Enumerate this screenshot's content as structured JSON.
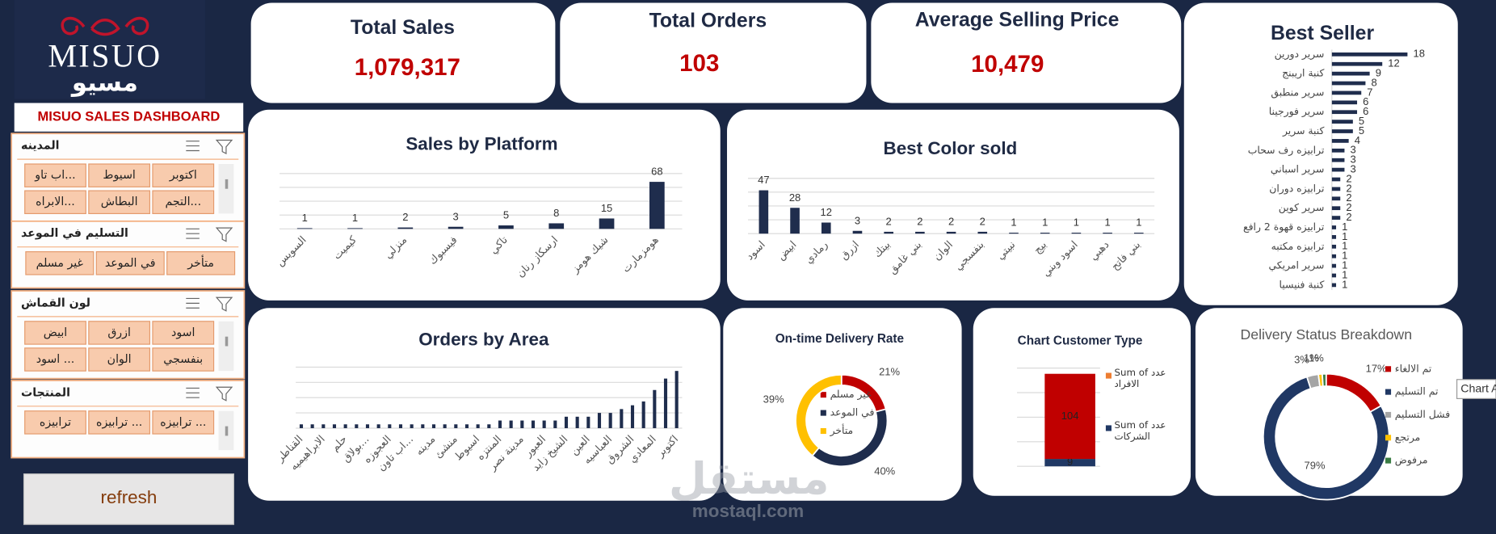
{
  "logo": {
    "latin": "MISUO",
    "arabic": "مسيو"
  },
  "dashboard_title": "MISUO SALES DASHBOARD",
  "slicers": [
    {
      "title": "المدينه",
      "items": [
        "اكتوبر",
        "اسيوط",
        "اب تاو...",
        "التجم...",
        "البطاش",
        "الابراه..."
      ]
    },
    {
      "title": "التسليم في الموعد",
      "items": [
        "متأخر",
        "في الموعد",
        "غير مسلم"
      ]
    },
    {
      "title": "لون القماش",
      "items": [
        "اسود",
        "ازرق",
        "ابيض",
        "بنفسجي",
        "الوان",
        "اسود ..."
      ]
    },
    {
      "title": "المنتجات",
      "items": [
        "ترابيزه ...",
        "ترابيزه ...",
        "ترابيزه"
      ]
    }
  ],
  "refresh": "refresh",
  "kpis": [
    {
      "title": "Total Sales",
      "value": "1,079,317"
    },
    {
      "title": "Total Orders",
      "value": "103"
    },
    {
      "title": "Average Selling Price",
      "value": "10,479"
    }
  ],
  "chart_data": [
    {
      "type": "bar",
      "title": "Sales by Platform",
      "categories": [
        "السويس",
        "كيميت",
        "منزلي",
        "فيسبوك",
        "تاكي",
        "ارسكاز رنان",
        "شيك هومز",
        "هومزمارت"
      ],
      "values": [
        1,
        1,
        2,
        3,
        5,
        8,
        15,
        68
      ],
      "color": "#1f2d4d",
      "ylim": [
        0,
        80
      ],
      "show_values": true
    },
    {
      "type": "bar",
      "title": "Best Color sold",
      "categories": [
        "اسود",
        "ابيض",
        "رمادي",
        "ازرق",
        "بيتك",
        "بني غامق",
        "الوان",
        "بنفسجي",
        "نبيتي",
        "بيج",
        "اسود وبني",
        "دهبي",
        "بني فاتح"
      ],
      "values": [
        47,
        28,
        12,
        3,
        2,
        2,
        2,
        2,
        1,
        1,
        1,
        1,
        1
      ],
      "color": "#1f2d4d",
      "ylim": [
        0,
        60
      ],
      "show_values": true
    },
    {
      "type": "barh",
      "title": "Best Seller",
      "categories": [
        "سرير دورين",
        null,
        "كنبة اريبنج",
        null,
        "سرير منطبق",
        null,
        "سرير فورجينا",
        null,
        "كنبة سرير",
        null,
        "ترابيزه رف سحاب",
        null,
        "سرير اسباني",
        null,
        "ترابيزه دوران",
        null,
        "سرير كوين",
        null,
        "ترابيزه قهوة 2 رافع",
        null,
        "ترابيزه مكتبه",
        null,
        "سرير امريكي",
        null,
        "كنبة فنيسيا"
      ],
      "values": [
        18,
        12,
        9,
        8,
        7,
        6,
        6,
        5,
        5,
        4,
        3,
        3,
        3,
        2,
        2,
        2,
        2,
        2,
        1,
        1,
        1,
        1,
        1,
        1,
        1
      ],
      "color": "#1f2d4d",
      "xlim": [
        0,
        20
      ],
      "show_values": true
    },
    {
      "type": "bar",
      "title": "Orders by Area",
      "categories": [
        "القناطر",
        null,
        "الابراهيميه",
        null,
        "حلم",
        null,
        "بولاق...",
        null,
        "العجوزه",
        null,
        "اب تاون...",
        null,
        "مدينه",
        null,
        "منشئ",
        null,
        "اسيوط",
        null,
        "المنتزه",
        null,
        "مدينة نصر",
        null,
        "العبور",
        null,
        "الشيخ زايد",
        null,
        "العين",
        null,
        "العباسيه",
        null,
        "الشروق",
        null,
        "المعادي",
        null,
        "اكتوبر"
      ],
      "values": [
        1,
        1,
        1,
        1,
        1,
        1,
        1,
        1,
        1,
        1,
        1,
        1,
        1,
        1,
        1,
        1,
        1,
        1,
        2,
        2,
        2,
        2,
        2,
        2,
        3,
        3,
        3,
        4,
        4,
        5,
        6,
        7,
        10,
        13,
        15
      ],
      "color": "#1f2d4d",
      "ylim": [
        0,
        16
      ],
      "show_values": false
    },
    {
      "type": "donut",
      "title": "On-time Delivery Rate",
      "categories": [
        "غير مسلم",
        "في الموعد",
        "متأخر"
      ],
      "values": [
        21,
        40,
        39
      ],
      "value_labels": [
        "21%",
        "40%",
        "39%"
      ],
      "colors": [
        "#c00000",
        "#1f2d4d",
        "#ffc000"
      ]
    },
    {
      "type": "stacked_bar",
      "title": "Chart Customer Type",
      "series": [
        {
          "name": "Sum of عدد الشركات",
          "color": "#203864",
          "values": [
            9
          ]
        },
        {
          "name": "Sum of عدد الافراد",
          "color": "#c00000",
          "legend_color": "#ed7d31",
          "values": [
            104
          ]
        }
      ],
      "ylim": [
        0,
        120
      ]
    },
    {
      "type": "donut",
      "title": "Delivery Status Breakdown",
      "categories": [
        "تم الالغاء",
        "تم التسليم",
        "فشل التسليم",
        "مرتجع",
        "مرفوض"
      ],
      "values": [
        17,
        79,
        3,
        1,
        1
      ],
      "value_labels": [
        "17%",
        "79%",
        "3%",
        "1%",
        "1%"
      ],
      "colors": [
        "#c00000",
        "#203864",
        "#a5a5a5",
        "#ffc000",
        "#3a7d44"
      ]
    }
  ],
  "watermark": {
    "arabic": "مستقل",
    "url": "mostaql.com"
  },
  "tooltip": "Chart A"
}
